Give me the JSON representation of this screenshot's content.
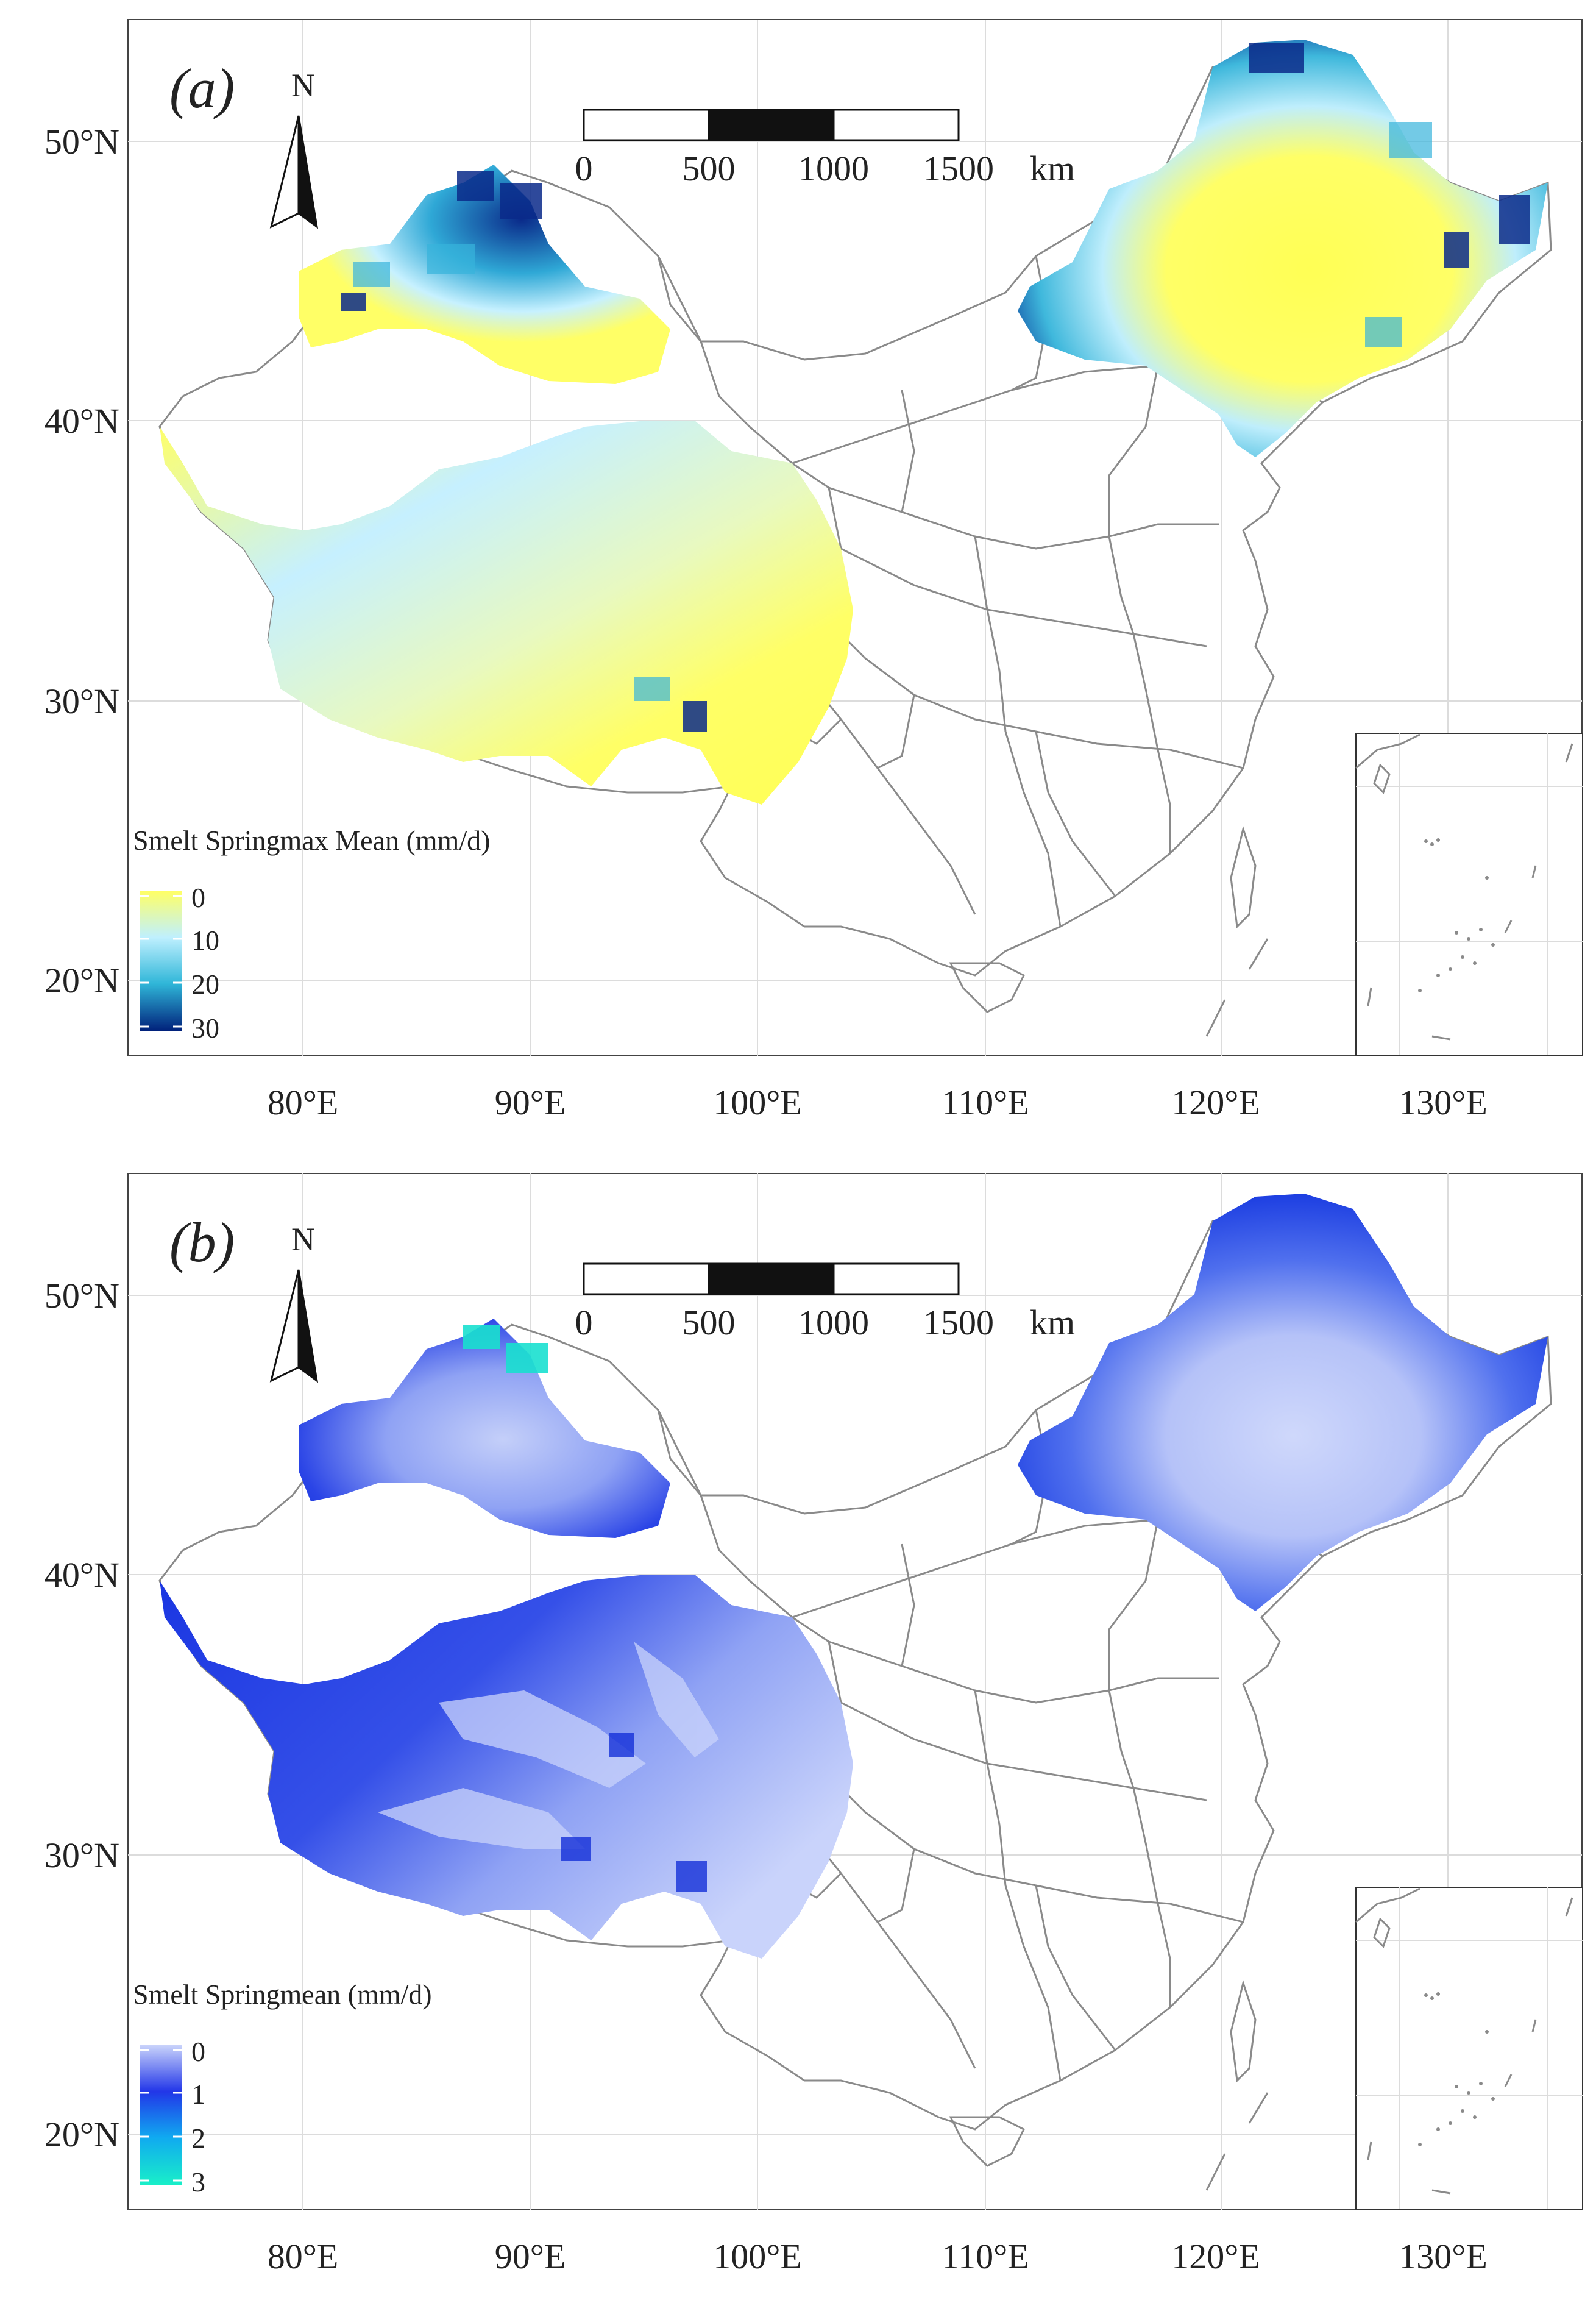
{
  "axes": {
    "lat_labels": [
      "50°N",
      "40°N",
      "30°N",
      "20°N"
    ],
    "lon_labels": [
      "80°E",
      "90°E",
      "100°E",
      "110°E",
      "120°E",
      "130°E"
    ]
  },
  "north_arrow_label": "N",
  "scale_bar": {
    "ticks": [
      "0",
      "500",
      "1000",
      "1500"
    ],
    "unit": "km"
  },
  "colors": {
    "border": "#8a8a8a",
    "grid": "#dcdcdc",
    "panel_a_ramp": [
      "#ffff66",
      "#bff0ff",
      "#2fb6d8",
      "#001f7a"
    ],
    "panel_b_ramp": [
      "#c9d3fb",
      "#2236e8",
      "#10aaf0",
      "#19f0c8"
    ]
  },
  "panels": [
    {
      "id": "a",
      "label": "(a)",
      "legend": {
        "title": "Smelt  Springmax  Mean (mm/d)",
        "breaks": [
          "0",
          "10",
          "20",
          "30"
        ]
      }
    },
    {
      "id": "b",
      "label": "(b)",
      "legend": {
        "title": "Smelt  Springmean (mm/d)",
        "breaks": [
          "0",
          "1",
          "2",
          "3"
        ]
      }
    }
  ]
}
